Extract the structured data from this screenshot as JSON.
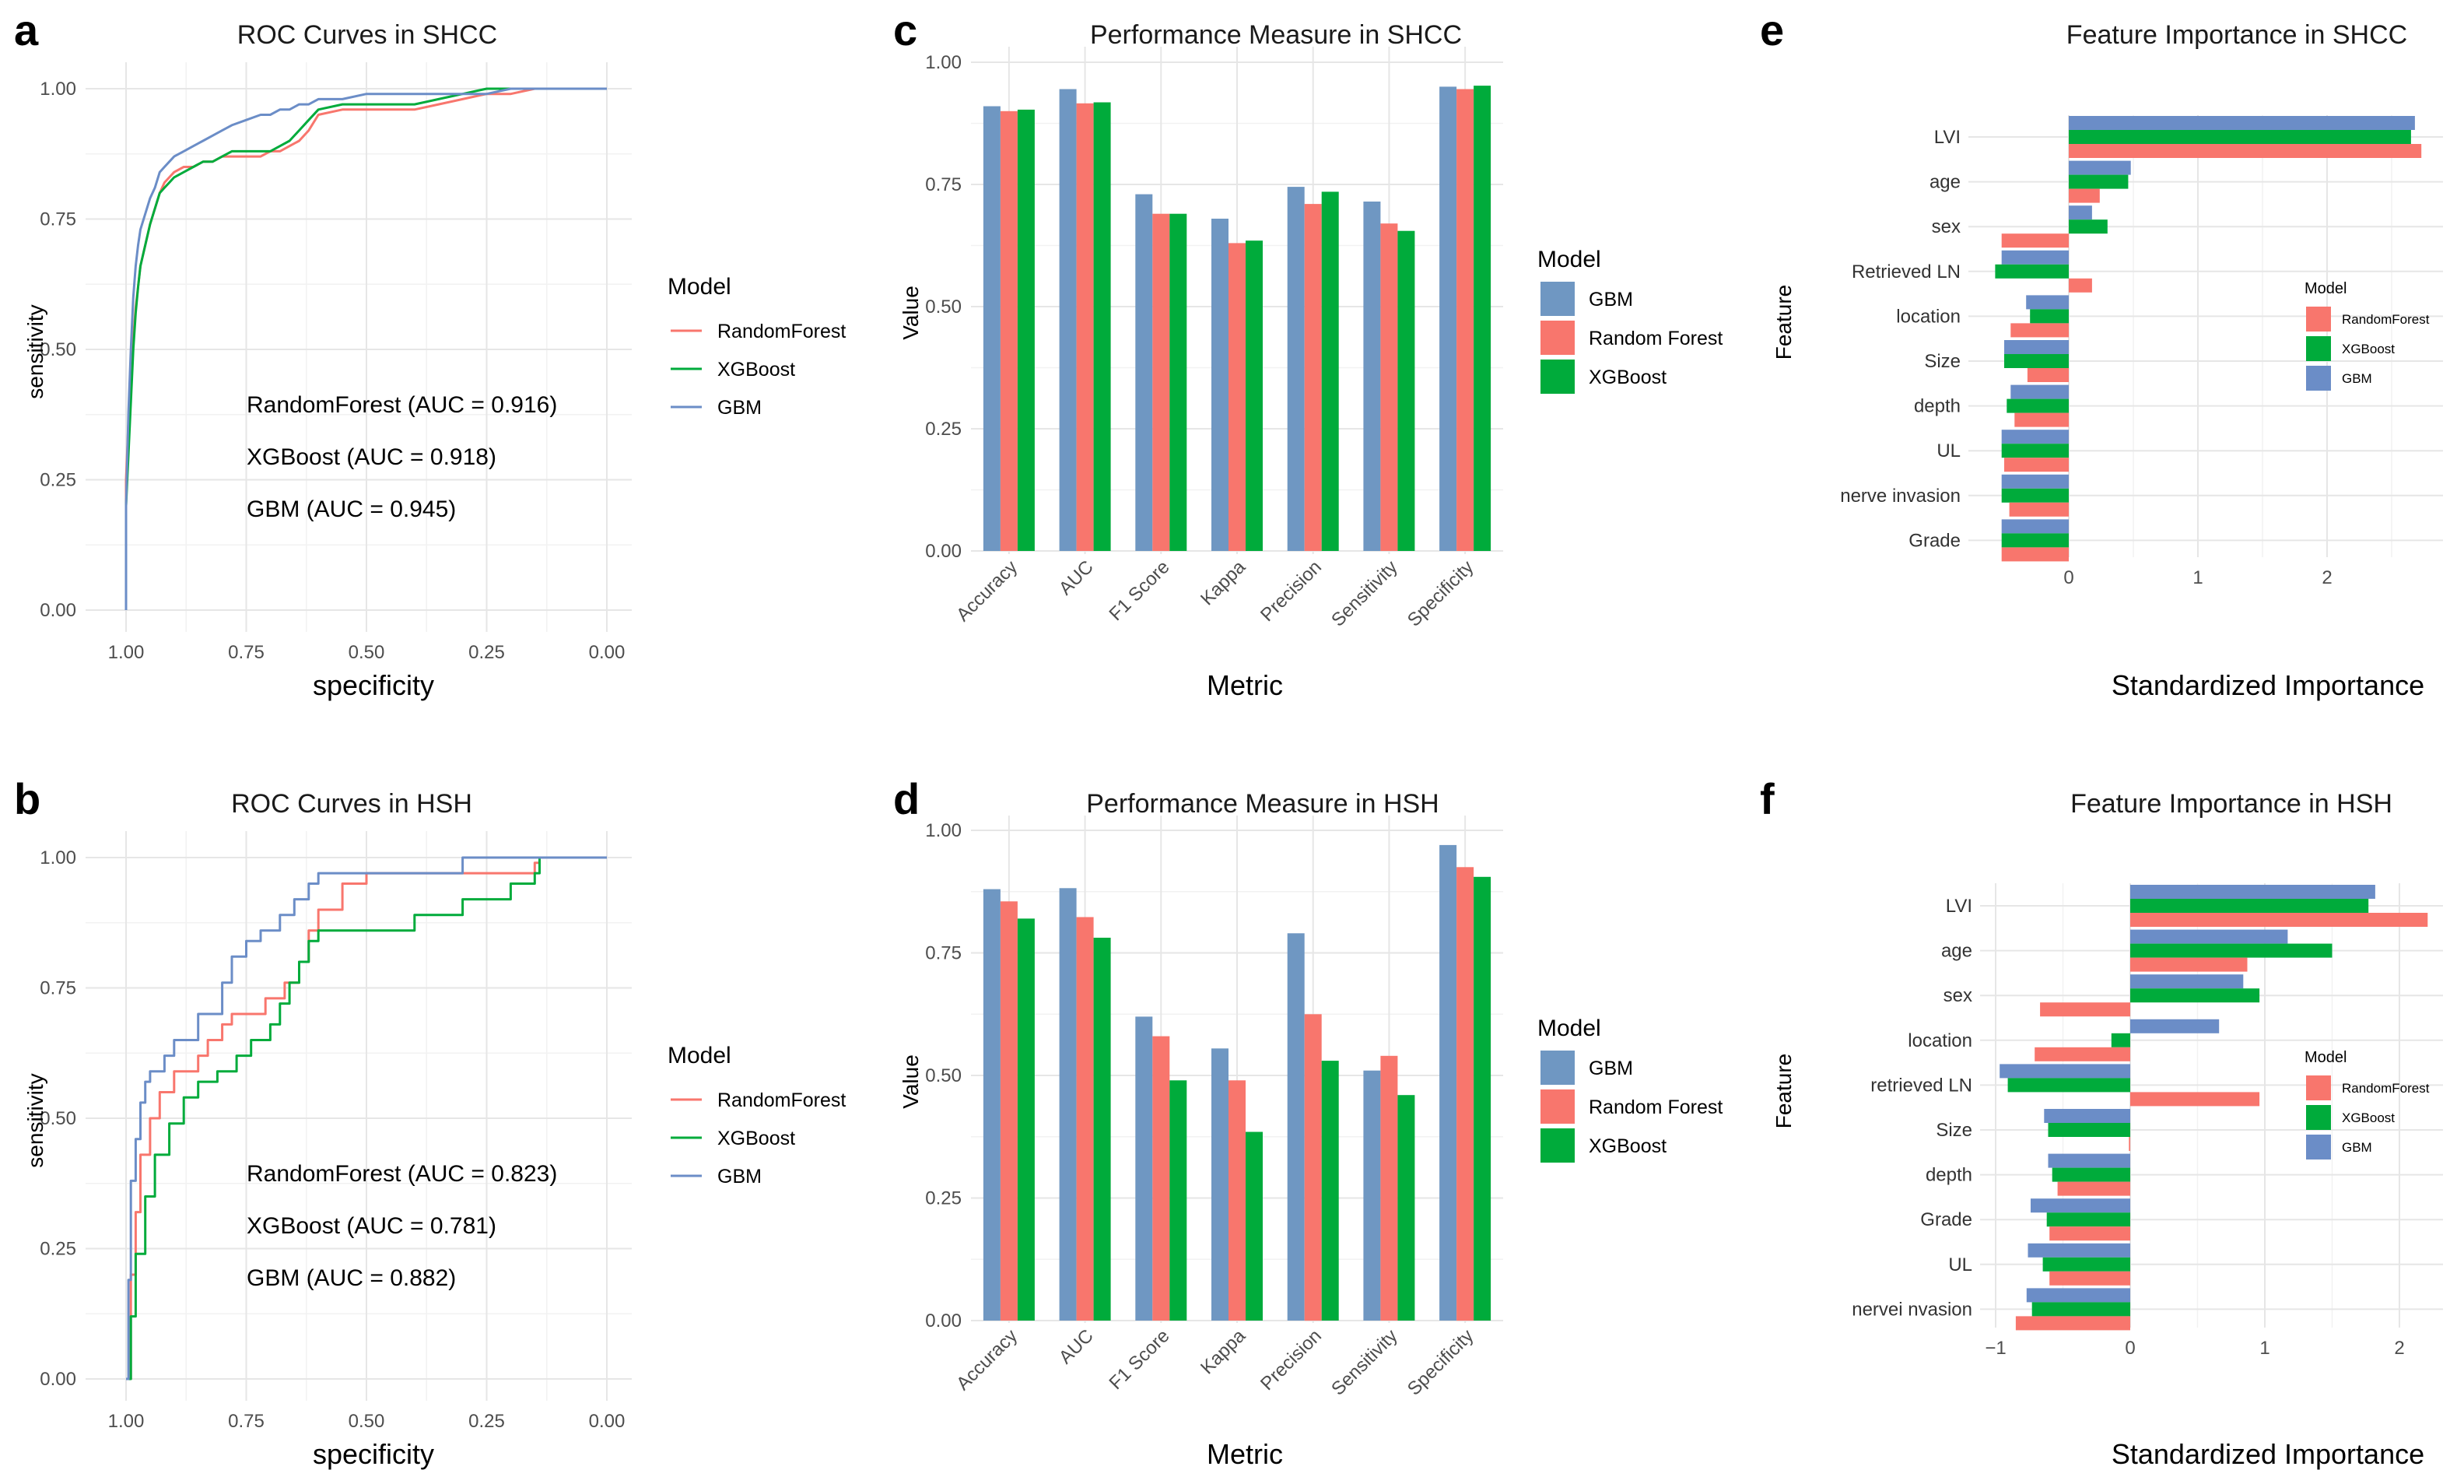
{
  "colors": {
    "randomforest": "#f8766d",
    "xgboost": "#00ab3b",
    "gbm": "#6b8dc7",
    "bar_gbm": "#6f97c2",
    "bar_rf": "#f8766d",
    "bar_xgb": "#00ab3b"
  },
  "panels": {
    "a": {
      "tag": "a",
      "title": "ROC Curves  in SHCC",
      "xlabel": "specificity",
      "ylabel": "sensitivity",
      "xticks": [
        "1.00",
        "0.75",
        "0.50",
        "0.25",
        "0.00"
      ],
      "yticks": [
        "0.00",
        "0.25",
        "0.50",
        "0.75",
        "1.00"
      ],
      "legend_title": "Model",
      "legend": [
        "RandomForest",
        "XGBoost",
        "GBM"
      ],
      "annotations": [
        "RandomForest (AUC = 0.916)",
        "XGBoost (AUC = 0.918)",
        "GBM (AUC = 0.945)"
      ]
    },
    "b": {
      "tag": "b",
      "title": "ROC Curves in HSH",
      "xlabel": "specificity",
      "ylabel": "sensitivity",
      "xticks": [
        "1.00",
        "0.75",
        "0.50",
        "0.25",
        "0.00"
      ],
      "yticks": [
        "0.00",
        "0.25",
        "0.50",
        "0.75",
        "1.00"
      ],
      "legend_title": "Model",
      "legend": [
        "RandomForest",
        "XGBoost",
        "GBM"
      ],
      "annotations": [
        "RandomForest (AUC = 0.823)",
        "XGBoost (AUC = 0.781)",
        "GBM (AUC = 0.882)"
      ]
    },
    "c": {
      "tag": "c",
      "title": "Performance Measure in SHCC",
      "xlabel": "Metric",
      "ylabel": "Value",
      "yticks": [
        "0.00",
        "0.25",
        "0.50",
        "0.75",
        "1.00"
      ],
      "legend_title": "Model",
      "legend": [
        "GBM",
        "Random Forest",
        "XGBoost"
      ]
    },
    "d": {
      "tag": "d",
      "title": "Performance Measure in HSH",
      "xlabel": "Metric",
      "ylabel": "Value",
      "yticks": [
        "0.00",
        "0.25",
        "0.50",
        "0.75",
        "1.00"
      ],
      "legend_title": "Model",
      "legend": [
        "GBM",
        "Random Forest",
        "XGBoost"
      ]
    },
    "e": {
      "tag": "e",
      "title": "Feature Importance in SHCC",
      "xlabel": "Standardized Importance",
      "ylabel": "Feature",
      "xticks": [
        "0",
        "1",
        "2"
      ],
      "legend_title": "Model",
      "legend": [
        "RandomForest",
        "XGBoost",
        "GBM"
      ]
    },
    "f": {
      "tag": "f",
      "title": "Feature Importance in HSH",
      "xlabel": "Standardized Importance",
      "ylabel": "Feature",
      "xticks": [
        "−1",
        "0",
        "1",
        "2"
      ],
      "legend_title": "Model",
      "legend": [
        "RandomForest",
        "XGBoost",
        "GBM"
      ]
    }
  },
  "chart_data": [
    {
      "panel": "a",
      "type": "line",
      "title": "ROC Curves  in SHCC",
      "xlabel": "specificity",
      "ylabel": "sensitivity",
      "xlim": [
        1,
        0
      ],
      "ylim": [
        0,
        1
      ],
      "series": [
        {
          "name": "RandomForest",
          "specificity": [
            1,
            1,
            0.995,
            0.99,
            0.985,
            0.98,
            0.975,
            0.97,
            0.96,
            0.95,
            0.94,
            0.93,
            0.92,
            0.91,
            0.9,
            0.88,
            0.86,
            0.84,
            0.82,
            0.8,
            0.78,
            0.75,
            0.72,
            0.7,
            0.68,
            0.66,
            0.64,
            0.62,
            0.6,
            0.55,
            0.5,
            0.45,
            0.4,
            0.35,
            0.3,
            0.25,
            0.2,
            0.15,
            0.1,
            0.05,
            0
          ],
          "sensitivity": [
            0,
            0.25,
            0.36,
            0.45,
            0.52,
            0.58,
            0.62,
            0.66,
            0.7,
            0.74,
            0.77,
            0.8,
            0.82,
            0.83,
            0.84,
            0.85,
            0.85,
            0.86,
            0.86,
            0.87,
            0.87,
            0.87,
            0.87,
            0.88,
            0.88,
            0.89,
            0.9,
            0.92,
            0.95,
            0.96,
            0.96,
            0.96,
            0.96,
            0.97,
            0.98,
            0.99,
            0.99,
            1,
            1,
            1,
            1
          ]
        },
        {
          "name": "XGBoost",
          "specificity": [
            1,
            1,
            0.995,
            0.99,
            0.985,
            0.98,
            0.975,
            0.97,
            0.96,
            0.95,
            0.94,
            0.93,
            0.92,
            0.91,
            0.9,
            0.88,
            0.86,
            0.84,
            0.82,
            0.8,
            0.78,
            0.75,
            0.72,
            0.7,
            0.68,
            0.66,
            0.64,
            0.62,
            0.6,
            0.55,
            0.5,
            0.45,
            0.4,
            0.35,
            0.3,
            0.25,
            0.2,
            0.15,
            0.1,
            0.05,
            0
          ],
          "sensitivity": [
            0,
            0.2,
            0.3,
            0.4,
            0.5,
            0.57,
            0.62,
            0.66,
            0.7,
            0.74,
            0.77,
            0.8,
            0.81,
            0.82,
            0.83,
            0.84,
            0.85,
            0.86,
            0.86,
            0.87,
            0.88,
            0.88,
            0.88,
            0.88,
            0.89,
            0.9,
            0.92,
            0.94,
            0.96,
            0.97,
            0.97,
            0.97,
            0.97,
            0.98,
            0.99,
            1,
            1,
            1,
            1,
            1,
            1
          ]
        },
        {
          "name": "GBM",
          "specificity": [
            1,
            1,
            0.995,
            0.99,
            0.985,
            0.98,
            0.975,
            0.97,
            0.96,
            0.95,
            0.94,
            0.93,
            0.92,
            0.91,
            0.9,
            0.88,
            0.86,
            0.84,
            0.82,
            0.8,
            0.78,
            0.75,
            0.72,
            0.7,
            0.68,
            0.66,
            0.64,
            0.62,
            0.6,
            0.55,
            0.5,
            0.45,
            0.4,
            0.35,
            0.3,
            0.25,
            0.2,
            0.15,
            0.1,
            0.05,
            0
          ],
          "sensitivity": [
            0,
            0.2,
            0.38,
            0.5,
            0.6,
            0.66,
            0.7,
            0.73,
            0.76,
            0.79,
            0.81,
            0.84,
            0.85,
            0.86,
            0.87,
            0.88,
            0.89,
            0.9,
            0.91,
            0.92,
            0.93,
            0.94,
            0.95,
            0.95,
            0.96,
            0.96,
            0.97,
            0.97,
            0.98,
            0.98,
            0.99,
            0.99,
            0.99,
            0.99,
            0.99,
            0.99,
            1,
            1,
            1,
            1,
            1
          ]
        }
      ],
      "annotations": [
        "RandomForest (AUC = 0.916)",
        "XGBoost (AUC = 0.918)",
        "GBM (AUC = 0.945)"
      ]
    },
    {
      "panel": "b",
      "type": "line",
      "title": "ROC Curves in HSH",
      "xlabel": "specificity",
      "ylabel": "sensitivity",
      "xlim": [
        1,
        0
      ],
      "ylim": [
        0,
        1
      ],
      "series": [
        {
          "name": "RandomForest",
          "specificity": [
            1,
            0.99,
            0.99,
            0.98,
            0.98,
            0.97,
            0.97,
            0.95,
            0.95,
            0.93,
            0.93,
            0.9,
            0.9,
            0.85,
            0.85,
            0.83,
            0.83,
            0.8,
            0.8,
            0.78,
            0.78,
            0.75,
            0.75,
            0.71,
            0.71,
            0.67,
            0.67,
            0.64,
            0.64,
            0.62,
            0.62,
            0.6,
            0.6,
            0.55,
            0.55,
            0.5,
            0.5,
            0.45,
            0.45,
            0.15,
            0.15,
            0.14,
            0.14,
            0
          ],
          "sensitivity": [
            0,
            0,
            0.2,
            0.2,
            0.32,
            0.32,
            0.43,
            0.43,
            0.5,
            0.5,
            0.55,
            0.55,
            0.59,
            0.59,
            0.62,
            0.62,
            0.65,
            0.65,
            0.68,
            0.68,
            0.7,
            0.7,
            0.7,
            0.7,
            0.73,
            0.73,
            0.76,
            0.76,
            0.8,
            0.8,
            0.86,
            0.86,
            0.9,
            0.9,
            0.95,
            0.95,
            0.97,
            0.97,
            0.97,
            0.97,
            0.99,
            0.99,
            1,
            1
          ]
        },
        {
          "name": "XGBoost",
          "specificity": [
            1,
            0.99,
            0.99,
            0.98,
            0.98,
            0.96,
            0.96,
            0.94,
            0.94,
            0.91,
            0.91,
            0.88,
            0.88,
            0.85,
            0.85,
            0.81,
            0.81,
            0.77,
            0.77,
            0.74,
            0.74,
            0.7,
            0.7,
            0.68,
            0.68,
            0.66,
            0.66,
            0.64,
            0.64,
            0.62,
            0.62,
            0.6,
            0.6,
            0.4,
            0.4,
            0.3,
            0.3,
            0.2,
            0.2,
            0.15,
            0.15,
            0.14,
            0.14,
            0
          ],
          "sensitivity": [
            0,
            0,
            0.12,
            0.12,
            0.24,
            0.24,
            0.35,
            0.35,
            0.43,
            0.43,
            0.49,
            0.49,
            0.54,
            0.54,
            0.57,
            0.57,
            0.59,
            0.59,
            0.62,
            0.62,
            0.65,
            0.65,
            0.68,
            0.68,
            0.72,
            0.72,
            0.76,
            0.76,
            0.8,
            0.8,
            0.84,
            0.84,
            0.86,
            0.86,
            0.89,
            0.89,
            0.92,
            0.92,
            0.95,
            0.95,
            0.97,
            0.97,
            1,
            1
          ]
        },
        {
          "name": "GBM",
          "specificity": [
            1,
            0.995,
            0.995,
            0.99,
            0.99,
            0.98,
            0.98,
            0.97,
            0.97,
            0.96,
            0.96,
            0.95,
            0.95,
            0.92,
            0.92,
            0.9,
            0.9,
            0.85,
            0.85,
            0.8,
            0.8,
            0.78,
            0.78,
            0.75,
            0.75,
            0.72,
            0.72,
            0.68,
            0.68,
            0.65,
            0.65,
            0.62,
            0.62,
            0.6,
            0.6,
            0.3,
            0.3,
            0
          ],
          "sensitivity": [
            0,
            0,
            0.19,
            0.19,
            0.38,
            0.38,
            0.46,
            0.46,
            0.53,
            0.53,
            0.57,
            0.57,
            0.59,
            0.59,
            0.62,
            0.62,
            0.65,
            0.65,
            0.7,
            0.7,
            0.76,
            0.76,
            0.81,
            0.81,
            0.84,
            0.84,
            0.86,
            0.86,
            0.89,
            0.89,
            0.92,
            0.92,
            0.95,
            0.95,
            0.97,
            0.97,
            1,
            1
          ]
        }
      ],
      "annotations": [
        "RandomForest (AUC = 0.823)",
        "XGBoost (AUC = 0.781)",
        "GBM (AUC = 0.882)"
      ]
    },
    {
      "panel": "c",
      "type": "bar",
      "title": "Performance Measure in SHCC",
      "xlabel": "Metric",
      "ylabel": "Value",
      "ylim": [
        0,
        1
      ],
      "categories": [
        "Accuracy",
        "AUC",
        "F1 Score",
        "Kappa",
        "Precision",
        "Sensitivity",
        "Specificity"
      ],
      "series": [
        {
          "name": "GBM",
          "values": [
            0.91,
            0.945,
            0.73,
            0.68,
            0.745,
            0.715,
            0.95
          ]
        },
        {
          "name": "Random Forest",
          "values": [
            0.9,
            0.916,
            0.69,
            0.63,
            0.71,
            0.67,
            0.945
          ]
        },
        {
          "name": "XGBoost",
          "values": [
            0.903,
            0.918,
            0.69,
            0.635,
            0.735,
            0.655,
            0.952
          ]
        }
      ]
    },
    {
      "panel": "d",
      "type": "bar",
      "title": "Performance Measure in HSH",
      "xlabel": "Metric",
      "ylabel": "Value",
      "ylim": [
        0,
        1
      ],
      "categories": [
        "Accuracy",
        "AUC",
        "F1 Score",
        "Kappa",
        "Precision",
        "Sensitivity",
        "Specificity"
      ],
      "series": [
        {
          "name": "GBM",
          "values": [
            0.88,
            0.882,
            0.62,
            0.555,
            0.79,
            0.51,
            0.97
          ]
        },
        {
          "name": "Random Forest",
          "values": [
            0.855,
            0.823,
            0.58,
            0.49,
            0.625,
            0.54,
            0.925
          ]
        },
        {
          "name": "XGBoost",
          "values": [
            0.82,
            0.781,
            0.49,
            0.385,
            0.53,
            0.46,
            0.905
          ]
        }
      ]
    },
    {
      "panel": "e",
      "type": "bar",
      "orientation": "horizontal",
      "title": "Feature Importance in SHCC",
      "xlabel": "Standardized Importance",
      "ylabel": "Feature",
      "xlim": [
        -0.6,
        2.75
      ],
      "categories": [
        "LVI",
        "age",
        "sex",
        "Retrieved LN",
        "location",
        "Size",
        "depth",
        "UL",
        "nerve invasion",
        "Grade"
      ],
      "series": [
        {
          "name": "GBM",
          "values": [
            2.68,
            0.48,
            0.18,
            -0.52,
            -0.33,
            -0.5,
            -0.45,
            -0.52,
            -0.52,
            -0.52
          ]
        },
        {
          "name": "XGBoost",
          "values": [
            2.65,
            0.46,
            0.3,
            -0.57,
            -0.3,
            -0.5,
            -0.48,
            -0.52,
            -0.52,
            -0.52
          ]
        },
        {
          "name": "RandomForest",
          "values": [
            2.73,
            0.24,
            -0.52,
            0.18,
            -0.45,
            -0.32,
            -0.42,
            -0.5,
            -0.46,
            -0.52
          ]
        }
      ]
    },
    {
      "panel": "f",
      "type": "bar",
      "orientation": "horizontal",
      "title": "Feature Importance in HSH",
      "xlabel": "Standardized Importance",
      "ylabel": "Feature",
      "xlim": [
        -1.05,
        2.25
      ],
      "categories": [
        "LVI",
        "age",
        "sex",
        "location",
        "retrieved LN",
        "Size",
        "depth",
        "Grade",
        "UL",
        "nervei nvasion"
      ],
      "series": [
        {
          "name": "GBM",
          "values": [
            1.82,
            1.17,
            0.84,
            0.66,
            -0.97,
            -0.64,
            -0.61,
            -0.74,
            -0.76,
            -0.77
          ]
        },
        {
          "name": "XGBoost",
          "values": [
            1.77,
            1.5,
            0.96,
            -0.14,
            -0.91,
            -0.61,
            -0.58,
            -0.62,
            -0.65,
            -0.73
          ]
        },
        {
          "name": "RandomForest",
          "values": [
            2.21,
            0.87,
            -0.67,
            -0.71,
            0.96,
            -0.01,
            -0.54,
            -0.6,
            -0.6,
            -0.85
          ]
        }
      ]
    }
  ]
}
